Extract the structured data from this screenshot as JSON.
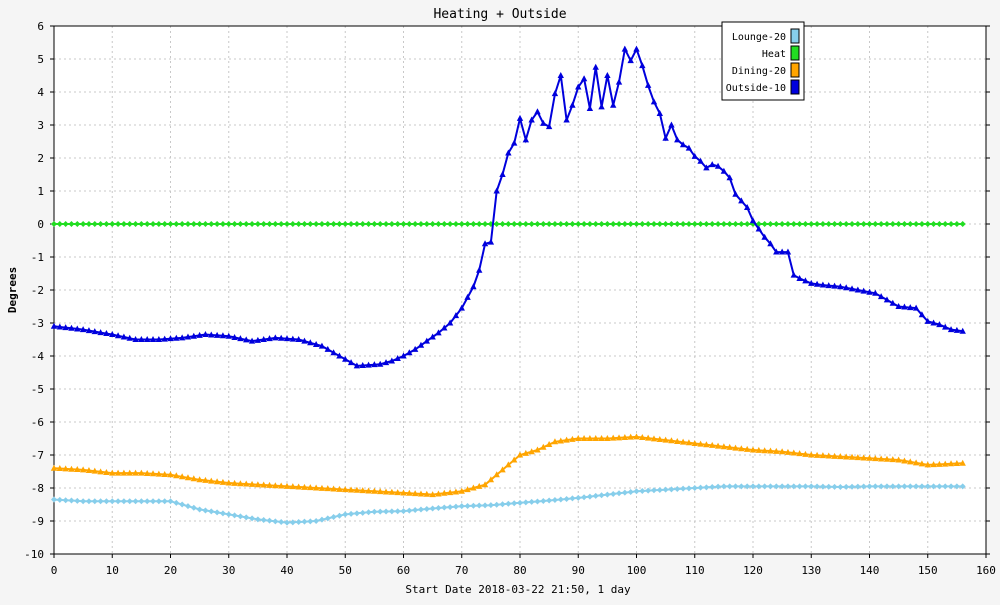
{
  "chart_data": {
    "type": "line",
    "title": "Heating + Outside",
    "xlabel": "Start Date 2018-03-22 21:50, 1 day",
    "ylabel": "Degrees",
    "xlim": [
      0,
      160
    ],
    "ylim": [
      -10,
      6
    ],
    "x_ticks": [
      0,
      10,
      20,
      30,
      40,
      50,
      60,
      70,
      80,
      90,
      100,
      110,
      120,
      130,
      140,
      150,
      160
    ],
    "y_ticks": [
      -10,
      -9,
      -8,
      -7,
      -6,
      -5,
      -4,
      -3,
      -2,
      -1,
      0,
      1,
      2,
      3,
      4,
      5,
      6
    ],
    "grid": true,
    "legend_position": "top-right",
    "series": [
      {
        "name": "Lounge-20",
        "color": "#87ceeb",
        "marker": "diamond",
        "points": [
          [
            0,
            -8.35
          ],
          [
            5,
            -8.4
          ],
          [
            10,
            -8.4
          ],
          [
            15,
            -8.4
          ],
          [
            20,
            -8.4
          ],
          [
            25,
            -8.65
          ],
          [
            30,
            -8.8
          ],
          [
            35,
            -8.95
          ],
          [
            40,
            -9.05
          ],
          [
            45,
            -9.0
          ],
          [
            50,
            -8.8
          ],
          [
            55,
            -8.72
          ],
          [
            60,
            -8.7
          ],
          [
            65,
            -8.62
          ],
          [
            70,
            -8.55
          ],
          [
            75,
            -8.52
          ],
          [
            80,
            -8.45
          ],
          [
            85,
            -8.38
          ],
          [
            90,
            -8.3
          ],
          [
            95,
            -8.2
          ],
          [
            100,
            -8.1
          ],
          [
            105,
            -8.05
          ],
          [
            110,
            -8.0
          ],
          [
            115,
            -7.95
          ],
          [
            120,
            -7.95
          ],
          [
            125,
            -7.95
          ],
          [
            130,
            -7.95
          ],
          [
            135,
            -7.97
          ],
          [
            140,
            -7.95
          ],
          [
            145,
            -7.95
          ],
          [
            150,
            -7.95
          ],
          [
            156,
            -7.95
          ]
        ]
      },
      {
        "name": "Heat",
        "color": "#22dd22",
        "marker": "diamond",
        "points": [
          [
            0,
            0
          ],
          [
            156,
            0
          ]
        ]
      },
      {
        "name": "Dining-20",
        "color": "#ffa500",
        "marker": "triangle",
        "points": [
          [
            0,
            -7.4
          ],
          [
            5,
            -7.45
          ],
          [
            10,
            -7.55
          ],
          [
            15,
            -7.55
          ],
          [
            20,
            -7.6
          ],
          [
            25,
            -7.75
          ],
          [
            30,
            -7.85
          ],
          [
            35,
            -7.9
          ],
          [
            40,
            -7.95
          ],
          [
            45,
            -8.0
          ],
          [
            50,
            -8.05
          ],
          [
            55,
            -8.1
          ],
          [
            60,
            -8.15
          ],
          [
            65,
            -8.2
          ],
          [
            70,
            -8.1
          ],
          [
            74,
            -7.9
          ],
          [
            78,
            -7.3
          ],
          [
            80,
            -7.0
          ],
          [
            83,
            -6.85
          ],
          [
            86,
            -6.6
          ],
          [
            90,
            -6.5
          ],
          [
            95,
            -6.5
          ],
          [
            100,
            -6.45
          ],
          [
            105,
            -6.55
          ],
          [
            110,
            -6.65
          ],
          [
            115,
            -6.75
          ],
          [
            120,
            -6.85
          ],
          [
            125,
            -6.9
          ],
          [
            130,
            -7.0
          ],
          [
            135,
            -7.05
          ],
          [
            140,
            -7.1
          ],
          [
            145,
            -7.15
          ],
          [
            150,
            -7.3
          ],
          [
            156,
            -7.25
          ]
        ]
      },
      {
        "name": "Outside-10",
        "color": "#0000dd",
        "marker": "triangle",
        "points": [
          [
            0,
            -3.1
          ],
          [
            5,
            -3.2
          ],
          [
            10,
            -3.35
          ],
          [
            14,
            -3.5
          ],
          [
            18,
            -3.5
          ],
          [
            22,
            -3.45
          ],
          [
            26,
            -3.35
          ],
          [
            30,
            -3.4
          ],
          [
            34,
            -3.55
          ],
          [
            38,
            -3.45
          ],
          [
            42,
            -3.5
          ],
          [
            46,
            -3.7
          ],
          [
            50,
            -4.1
          ],
          [
            52,
            -4.3
          ],
          [
            56,
            -4.25
          ],
          [
            58,
            -4.15
          ],
          [
            60,
            -4.0
          ],
          [
            62,
            -3.8
          ],
          [
            64,
            -3.55
          ],
          [
            66,
            -3.3
          ],
          [
            68,
            -3.0
          ],
          [
            70,
            -2.55
          ],
          [
            72,
            -1.9
          ],
          [
            73,
            -1.4
          ],
          [
            74,
            -0.6
          ],
          [
            75,
            -0.55
          ],
          [
            76,
            1.0
          ],
          [
            77,
            1.5
          ],
          [
            78,
            2.15
          ],
          [
            79,
            2.45
          ],
          [
            80,
            3.2
          ],
          [
            81,
            2.55
          ],
          [
            82,
            3.15
          ],
          [
            83,
            3.4
          ],
          [
            84,
            3.05
          ],
          [
            85,
            2.95
          ],
          [
            86,
            3.95
          ],
          [
            87,
            4.5
          ],
          [
            88,
            3.15
          ],
          [
            89,
            3.6
          ],
          [
            90,
            4.15
          ],
          [
            91,
            4.4
          ],
          [
            92,
            3.5
          ],
          [
            93,
            4.75
          ],
          [
            94,
            3.55
          ],
          [
            95,
            4.5
          ],
          [
            96,
            3.6
          ],
          [
            97,
            4.3
          ],
          [
            98,
            5.3
          ],
          [
            99,
            4.95
          ],
          [
            100,
            5.3
          ],
          [
            101,
            4.8
          ],
          [
            102,
            4.2
          ],
          [
            103,
            3.7
          ],
          [
            104,
            3.35
          ],
          [
            105,
            2.6
          ],
          [
            106,
            3.0
          ],
          [
            107,
            2.55
          ],
          [
            108,
            2.4
          ],
          [
            109,
            2.3
          ],
          [
            110,
            2.05
          ],
          [
            111,
            1.9
          ],
          [
            112,
            1.7
          ],
          [
            113,
            1.8
          ],
          [
            114,
            1.75
          ],
          [
            115,
            1.6
          ],
          [
            116,
            1.4
          ],
          [
            117,
            0.9
          ],
          [
            118,
            0.7
          ],
          [
            119,
            0.5
          ],
          [
            120,
            0.1
          ],
          [
            121,
            -0.15
          ],
          [
            122,
            -0.4
          ],
          [
            123,
            -0.6
          ],
          [
            124,
            -0.85
          ],
          [
            126,
            -0.85
          ],
          [
            127,
            -1.55
          ],
          [
            128,
            -1.65
          ],
          [
            130,
            -1.8
          ],
          [
            132,
            -1.85
          ],
          [
            135,
            -1.9
          ],
          [
            138,
            -2.0
          ],
          [
            141,
            -2.1
          ],
          [
            143,
            -2.3
          ],
          [
            145,
            -2.5
          ],
          [
            148,
            -2.55
          ],
          [
            150,
            -2.95
          ],
          [
            152,
            -3.05
          ],
          [
            154,
            -3.2
          ],
          [
            156,
            -3.25
          ]
        ]
      }
    ]
  }
}
